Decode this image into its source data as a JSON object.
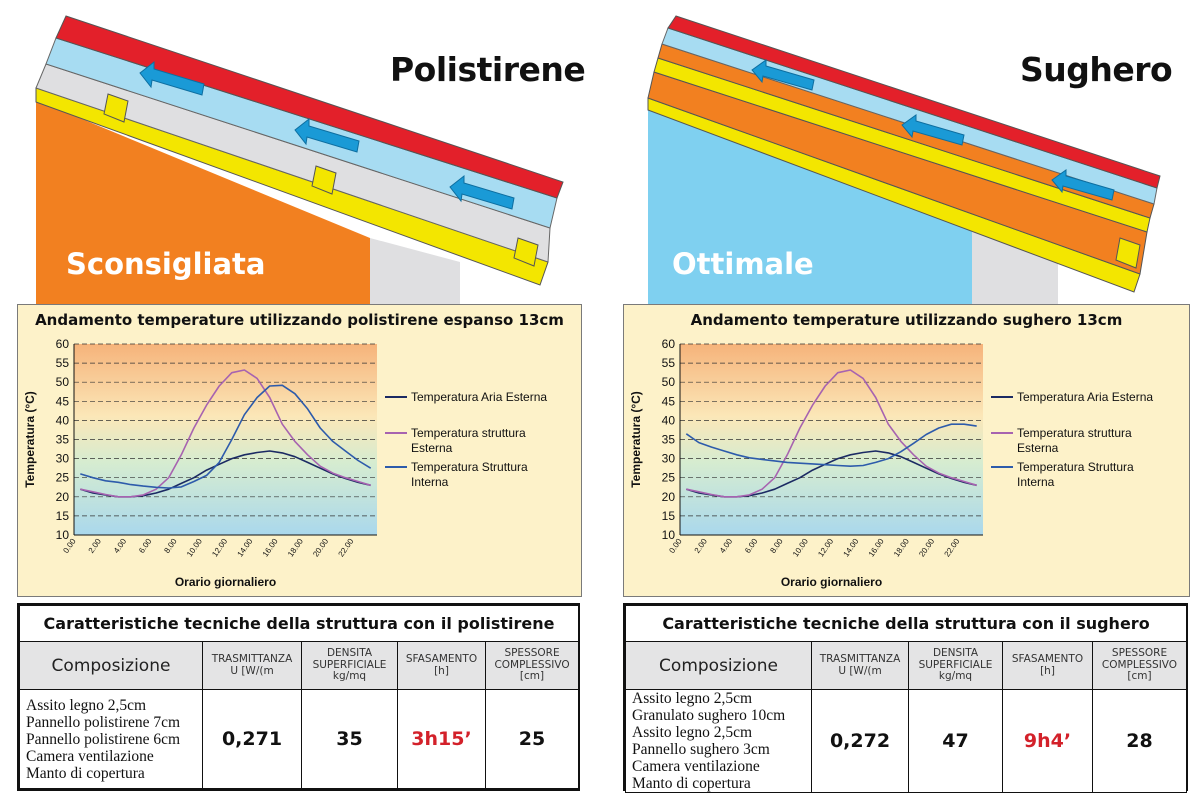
{
  "left": {
    "material_title": "Polistirene",
    "rating": "Sconsigliata",
    "chart_title": "Andamento temperature utilizzando polistirene espanso 13cm",
    "table_title": "Caratteristiche tecniche della struttura con il polistirene",
    "composition": [
      "Assito legno 2,5cm",
      "Pannello polistirene 7cm",
      "Pannello polistirene 6cm",
      "Camera ventilazione",
      "Manto di copertura"
    ],
    "values": {
      "trasmittanza": "0,271",
      "densita": "35",
      "sfasamento": "3h15’",
      "spessore": "25"
    }
  },
  "right": {
    "material_title": "Sughero",
    "rating": "Ottimale",
    "chart_title": "Andamento temperature utilizzando sughero 13cm",
    "table_title": "Caratteristiche tecniche della struttura con il sughero",
    "composition": [
      "Assito legno 2,5cm",
      "Granulato sughero 10cm",
      "Assito legno 2,5cm",
      "Pannello sughero 3cm",
      "Camera ventilazione",
      "Manto di copertura"
    ],
    "values": {
      "trasmittanza": "0,272",
      "densita": "47",
      "sfasamento": "9h4’",
      "spessore": "28"
    }
  },
  "table_headers": {
    "composizione": "Composizione",
    "trasmittanza": [
      "TRASMITTANZA",
      "U [W/(m"
    ],
    "densita": [
      "DENSITA",
      "SUPERFICIALE",
      "kg/mq"
    ],
    "sfasamento": [
      "SFASAMENTO",
      "[h]"
    ],
    "spessore": [
      "SPESSORE",
      "COMPLESSIVO",
      "[cm]"
    ]
  },
  "colors": {
    "red_roof": "#e3202a",
    "light_blue": "#a7dcf2",
    "light_gray": "#dfdfe1",
    "yellow": "#f3e600",
    "orange": "#f28020",
    "sky_blue": "#7fd0f0",
    "arrow_blue": "#1a9ad6",
    "series_air": "#1b2a63",
    "series_ext": "#a763b0",
    "series_int": "#2d5bab",
    "value_red": "#d3212a"
  },
  "chart_data": [
    {
      "type": "line",
      "title": "Andamento temperature utilizzando polistirene espanso 13cm",
      "xlabel": "Orario giornaliero",
      "ylabel": "Temperatura (°C)",
      "ylim": [
        10,
        60
      ],
      "yticks": [
        "60",
        "55",
        "50",
        "45",
        "40",
        "35",
        "30",
        "25",
        "20",
        "15",
        "10"
      ],
      "xticks": [
        "0.00",
        "2.00",
        "4.00",
        "6.00",
        "8.00",
        "10.00",
        "12.00",
        "14.00",
        "16.00",
        "18.00",
        "20.00",
        "22.00"
      ],
      "x": [
        1,
        2,
        3,
        4,
        5,
        6,
        7,
        8,
        9,
        10,
        11,
        12,
        13,
        14,
        15,
        16,
        17,
        18,
        19,
        20,
        21,
        22,
        23,
        24
      ],
      "series": [
        {
          "name": "Temperatura Aria Esterna",
          "values": [
            22,
            21,
            20.5,
            20,
            20,
            20.3,
            21,
            22,
            23.5,
            25,
            27,
            28.5,
            30,
            31,
            31.6,
            32,
            31.5,
            30.5,
            29,
            27.5,
            26,
            24.8,
            23.8,
            23
          ]
        },
        {
          "name": "Temperatura struttura Esterna",
          "values": [
            22,
            21.3,
            20.6,
            20,
            20,
            20.5,
            22,
            25,
            31,
            38,
            44,
            49,
            52.5,
            53.2,
            51,
            46,
            39,
            34.5,
            31,
            28,
            26.2,
            25,
            24,
            23
          ]
        },
        {
          "name": "Temperatura Struttura Interna",
          "values": [
            26,
            25,
            24.2,
            23.8,
            23.2,
            22.8,
            22.5,
            22.3,
            22.6,
            24,
            25.6,
            29,
            35,
            41.5,
            46,
            49,
            49.2,
            47,
            43,
            38,
            34.5,
            32,
            29.5,
            27.5
          ]
        }
      ],
      "legend": "right"
    },
    {
      "type": "line",
      "title": "Andamento temperature utilizzando sughero 13cm",
      "xlabel": "Orario giornaliero",
      "ylabel": "Temperatura (°C)",
      "ylim": [
        10,
        60
      ],
      "yticks": [
        "60",
        "55",
        "50",
        "45",
        "40",
        "35",
        "30",
        "25",
        "20",
        "15",
        "10"
      ],
      "xticks": [
        "0.00",
        "2.00",
        "4.00",
        "6.00",
        "8.00",
        "10.00",
        "12.00",
        "14.00",
        "16.00",
        "18.00",
        "20.00",
        "22.00"
      ],
      "x": [
        1,
        2,
        3,
        4,
        5,
        6,
        7,
        8,
        9,
        10,
        11,
        12,
        13,
        14,
        15,
        16,
        17,
        18,
        19,
        20,
        21,
        22,
        23,
        24
      ],
      "series": [
        {
          "name": "Temperatura Aria Esterna",
          "values": [
            22,
            21,
            20.5,
            20,
            20,
            20.3,
            21,
            22,
            23.5,
            25,
            27,
            28.5,
            30,
            31,
            31.6,
            32,
            31.5,
            30.5,
            29,
            27.5,
            26,
            24.8,
            23.8,
            23
          ]
        },
        {
          "name": "Temperatura struttura Esterna",
          "values": [
            22,
            21.3,
            20.6,
            20,
            20,
            20.5,
            22,
            25,
            31,
            38,
            44,
            49,
            52.5,
            53.2,
            51,
            46,
            39,
            34.5,
            31,
            28,
            26.2,
            25,
            24,
            23
          ]
        },
        {
          "name": "Temperatura Struttura Interna",
          "values": [
            36.5,
            34.2,
            33,
            32,
            31,
            30.2,
            29.8,
            29.4,
            29,
            28.8,
            28.6,
            28.4,
            28.2,
            28,
            28.2,
            29,
            30,
            31.8,
            34,
            36.3,
            38,
            39,
            39,
            38.5
          ]
        }
      ],
      "legend": "right"
    }
  ]
}
